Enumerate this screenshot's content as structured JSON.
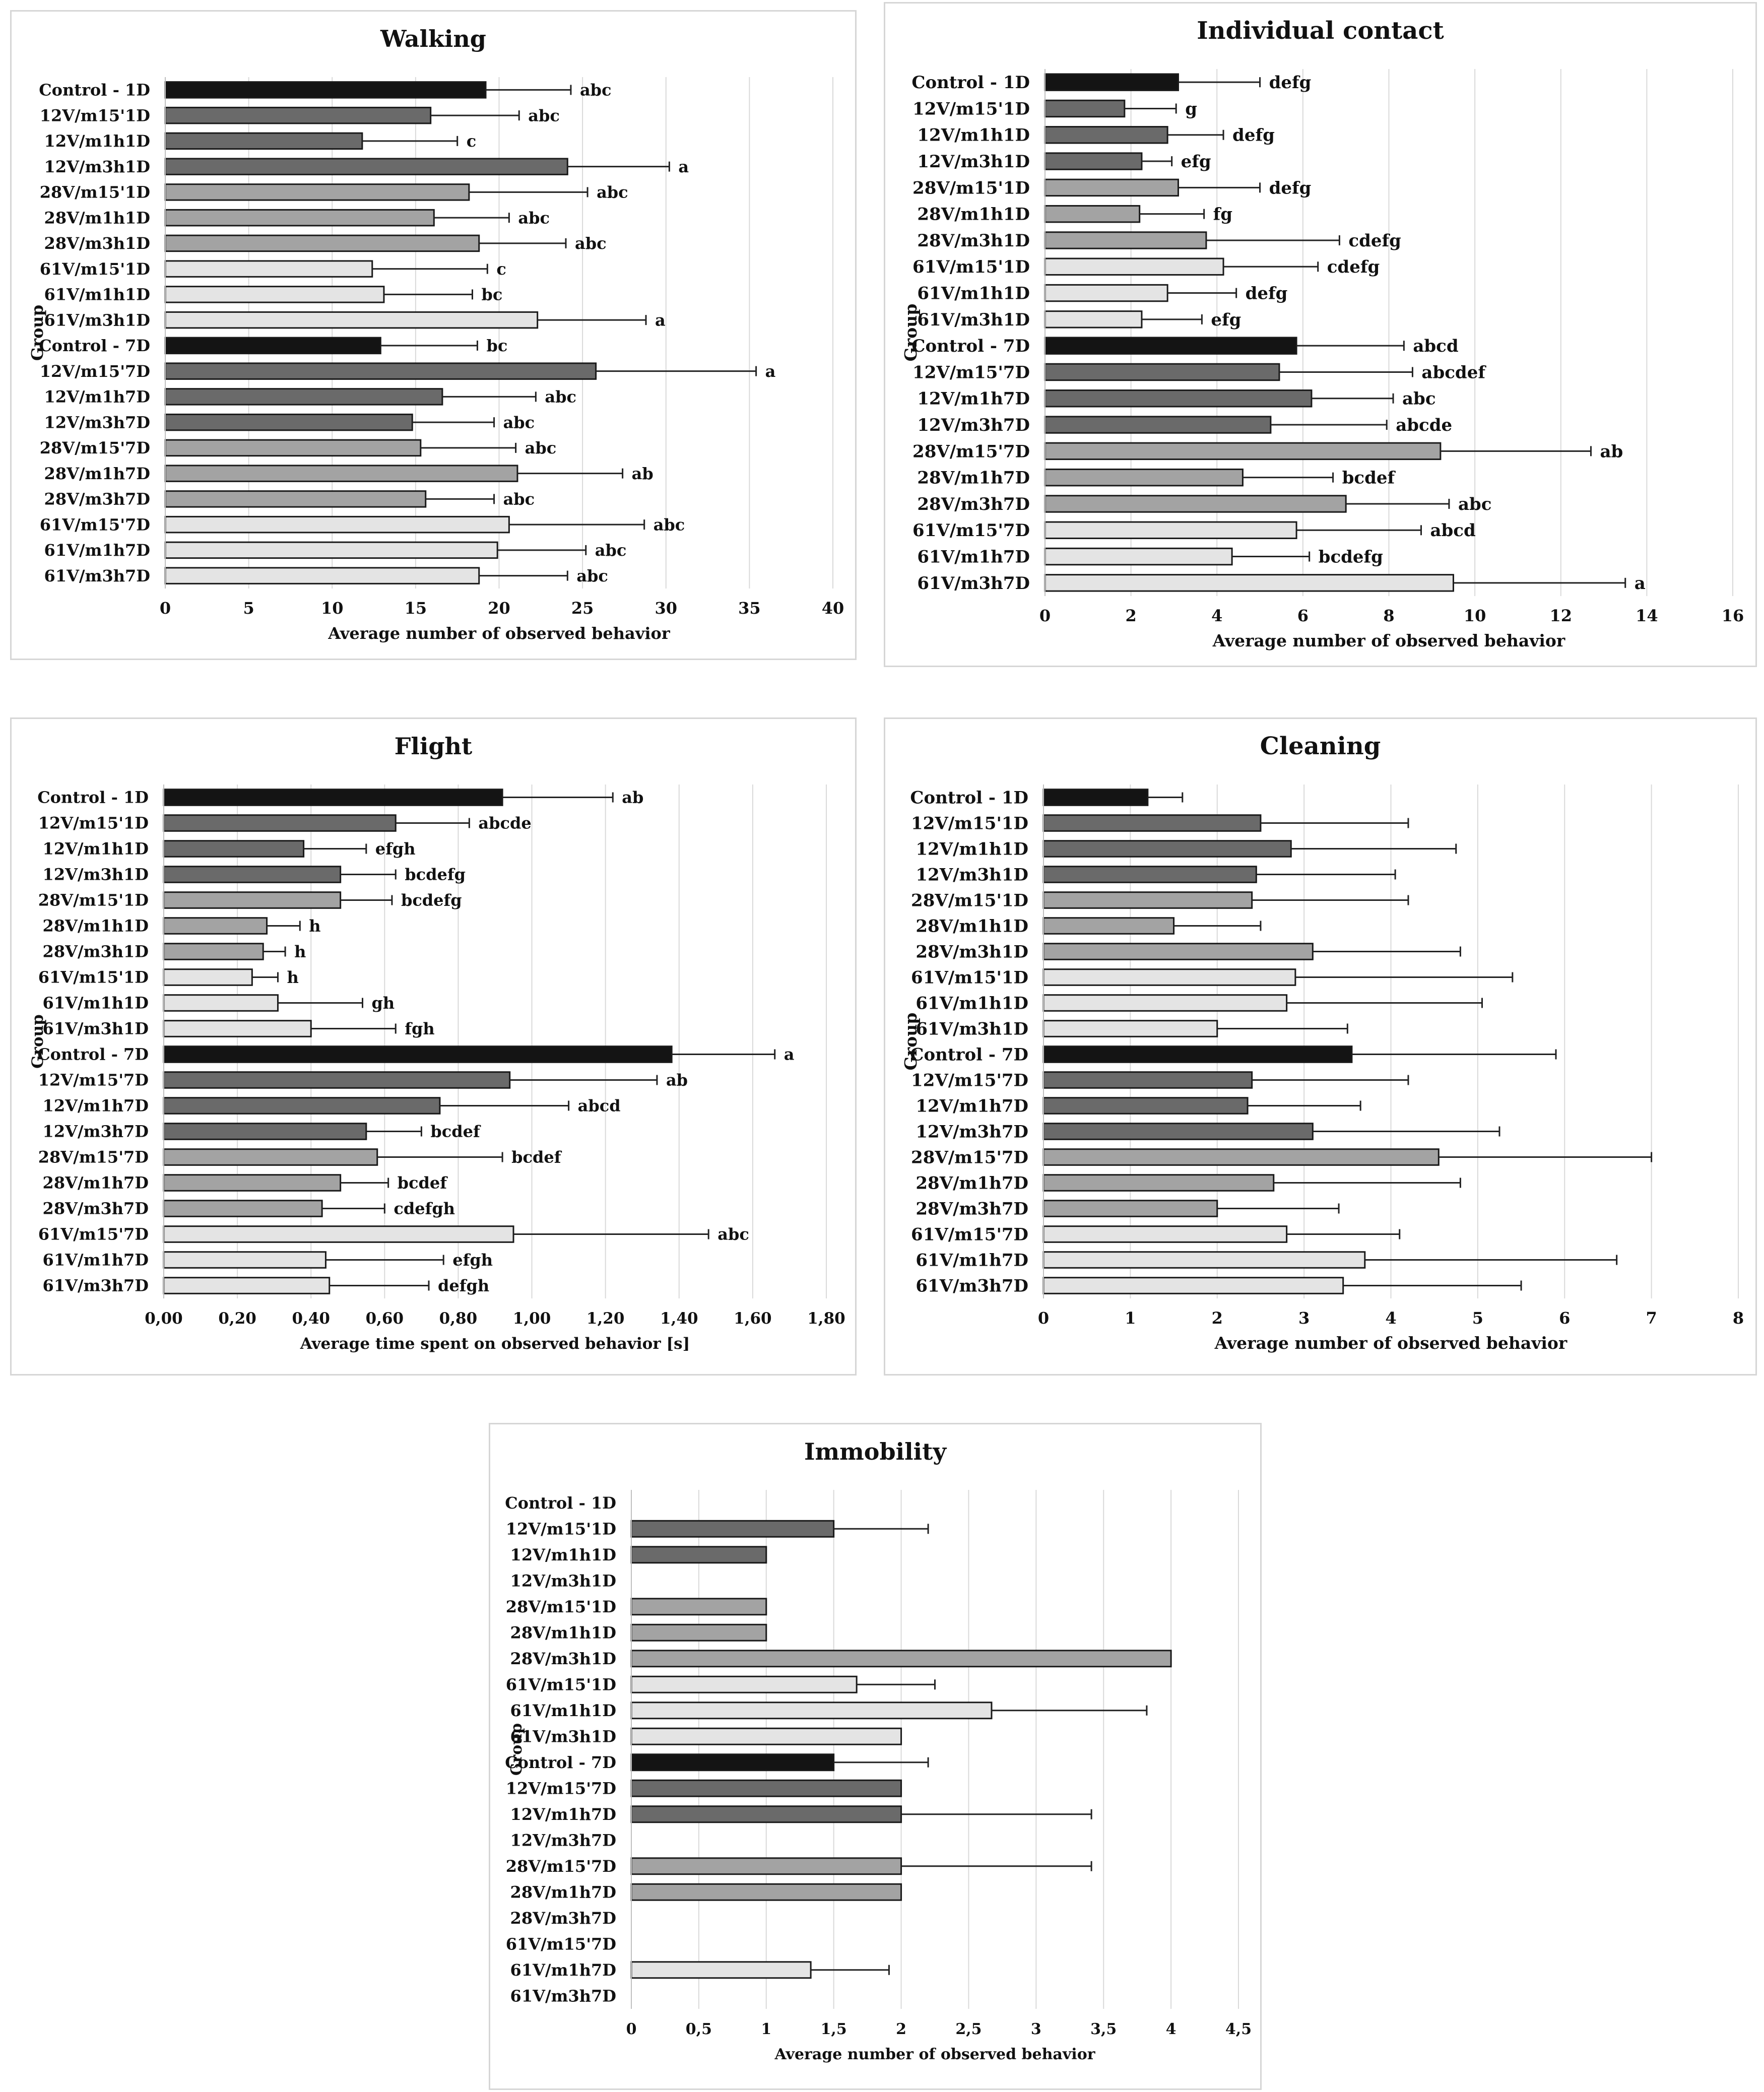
{
  "groups": [
    "Control - 1D",
    "12V/m15'1D",
    "12V/m1h1D",
    "12V/m3h1D",
    "28V/m15'1D",
    "28V/m1h1D",
    "28V/m3h1D",
    "61V/m15'1D",
    "61V/m1h1D",
    "61V/m3h1D",
    "Control - 7D",
    "12V/m15'7D",
    "12V/m1h7D",
    "12V/m3h7D",
    "28V/m15'7D",
    "28V/m1h7D",
    "28V/m3h7D",
    "61V/m15'7D",
    "61V/m1h7D",
    "61V/m3h7D"
  ],
  "series_colors": {
    "control": "#141414",
    "v12": "#6a6a6a",
    "v28": "#a3a3a3",
    "v61": "#e4e4e4"
  },
  "chart_data": [
    {
      "type": "bar",
      "orientation": "horizontal",
      "title": "Walking",
      "xlabel": "Average number of observed behavior",
      "ylabel": "Group",
      "xlim": [
        0,
        40
      ],
      "ticks": [
        0,
        5,
        10,
        15,
        20,
        25,
        30,
        35,
        40
      ],
      "tick_labels": [
        "0",
        "5",
        "10",
        "15",
        "20",
        "25",
        "30",
        "35",
        "40"
      ],
      "values": [
        19.2,
        15.9,
        11.8,
        24.1,
        18.2,
        16.1,
        18.8,
        12.4,
        13.1,
        22.3,
        12.9,
        25.8,
        16.6,
        14.8,
        15.3,
        21.1,
        15.6,
        20.6,
        19.9,
        18.8
      ],
      "errors": [
        5.1,
        5.3,
        5.7,
        6.1,
        7.1,
        4.5,
        5.2,
        6.9,
        5.3,
        6.5,
        5.8,
        9.6,
        5.6,
        4.9,
        5.7,
        6.3,
        4.1,
        8.1,
        5.3,
        5.3
      ],
      "letters": [
        "abc",
        "abc",
        "c",
        "a",
        "abc",
        "abc",
        "abc",
        "c",
        "bc",
        "a",
        "bc",
        "a",
        "abc",
        "abc",
        "abc",
        "ab",
        "abc",
        "abc",
        "abc",
        "abc"
      ]
    },
    {
      "type": "bar",
      "orientation": "horizontal",
      "title": "Individual contact",
      "xlabel": "Average number of observed behavior",
      "ylabel": "Group",
      "xlim": [
        0,
        16
      ],
      "ticks": [
        0,
        2,
        4,
        6,
        8,
        10,
        12,
        14,
        16
      ],
      "tick_labels": [
        "0",
        "2",
        "4",
        "6",
        "8",
        "10",
        "12",
        "14",
        "16"
      ],
      "values": [
        3.1,
        1.85,
        2.85,
        2.25,
        3.1,
        2.2,
        3.75,
        4.15,
        2.85,
        2.25,
        5.85,
        5.45,
        6.2,
        5.25,
        9.2,
        4.6,
        7.0,
        5.85,
        4.35,
        9.5
      ],
      "errors": [
        1.9,
        1.2,
        1.3,
        0.7,
        1.9,
        1.5,
        3.1,
        2.2,
        1.6,
        1.4,
        2.5,
        3.1,
        1.9,
        2.7,
        3.5,
        2.1,
        2.4,
        2.9,
        1.8,
        4.0
      ],
      "letters": [
        "defg",
        "g",
        "defg",
        "efg",
        "defg",
        "fg",
        "cdefg",
        "cdefg",
        "defg",
        "efg",
        "abcd",
        "abcdef",
        "abc",
        "abcde",
        "ab",
        "bcdef",
        "abc",
        "abcd",
        "bcdefg",
        "a"
      ]
    },
    {
      "type": "bar",
      "orientation": "horizontal",
      "title": "Flight",
      "xlabel": "Average time spent on observed behavior [s]",
      "ylabel": "Group",
      "xlim": [
        0,
        1.8
      ],
      "ticks": [
        0,
        0.2,
        0.4,
        0.6,
        0.8,
        1.0,
        1.2,
        1.4,
        1.6,
        1.8
      ],
      "tick_labels": [
        "0,00",
        "0,20",
        "0,40",
        "0,60",
        "0,80",
        "1,00",
        "1,20",
        "1,40",
        "1,60",
        "1,80"
      ],
      "values": [
        0.92,
        0.63,
        0.38,
        0.48,
        0.48,
        0.28,
        0.27,
        0.24,
        0.31,
        0.4,
        1.38,
        0.94,
        0.75,
        0.55,
        0.58,
        0.48,
        0.43,
        0.95,
        0.44,
        0.45
      ],
      "errors": [
        0.3,
        0.2,
        0.17,
        0.15,
        0.14,
        0.09,
        0.06,
        0.07,
        0.23,
        0.23,
        0.28,
        0.4,
        0.35,
        0.15,
        0.34,
        0.13,
        0.17,
        0.53,
        0.32,
        0.27
      ],
      "letters": [
        "ab",
        "abcde",
        "efgh",
        "bcdefg",
        "bcdefg",
        "h",
        "h",
        "h",
        "gh",
        "fgh",
        "a",
        "ab",
        "abcd",
        "bcdef",
        "bcdef",
        "bcdef",
        "cdefgh",
        "abc",
        "efgh",
        "defgh"
      ]
    },
    {
      "type": "bar",
      "orientation": "horizontal",
      "title": "Cleaning",
      "xlabel": "Average number of observed behavior",
      "ylabel": "Group",
      "xlim": [
        0,
        8
      ],
      "ticks": [
        0,
        1,
        2,
        3,
        4,
        5,
        6,
        7,
        8
      ],
      "tick_labels": [
        "0",
        "1",
        "2",
        "3",
        "4",
        "5",
        "6",
        "7",
        "8"
      ],
      "values": [
        1.2,
        2.5,
        2.85,
        2.45,
        2.4,
        1.5,
        3.1,
        2.9,
        2.8,
        2.0,
        3.55,
        2.4,
        2.35,
        3.1,
        4.55,
        2.65,
        2.0,
        2.8,
        3.7,
        3.45
      ],
      "errors": [
        0.4,
        1.7,
        1.9,
        1.6,
        1.8,
        1.0,
        1.7,
        2.5,
        2.25,
        1.5,
        2.35,
        1.8,
        1.3,
        2.15,
        2.45,
        2.15,
        1.4,
        1.3,
        2.9,
        2.05
      ],
      "letters": [
        "",
        "",
        "",
        "",
        "",
        "",
        "",
        "",
        "",
        "",
        "",
        "",
        "",
        "",
        "",
        "",
        "",
        "",
        "",
        ""
      ]
    },
    {
      "type": "bar",
      "orientation": "horizontal",
      "title": "Immobility",
      "xlabel": "Average number of observed behavior",
      "ylabel": "Group",
      "xlim": [
        0,
        4.5
      ],
      "ticks": [
        0,
        0.5,
        1,
        1.5,
        2,
        2.5,
        3,
        3.5,
        4,
        4.5
      ],
      "tick_labels": [
        "0",
        "0,5",
        "1",
        "1,5",
        "2",
        "2,5",
        "3",
        "3,5",
        "4",
        "4,5"
      ],
      "values": [
        0,
        1.5,
        1.0,
        0,
        1.0,
        1.0,
        4.0,
        1.67,
        2.67,
        2.0,
        1.5,
        2.0,
        2.0,
        0,
        2.0,
        2.0,
        0,
        0,
        1.33,
        0
      ],
      "errors": [
        0,
        0.7,
        0,
        0,
        0,
        0,
        0,
        0.58,
        1.15,
        0,
        0.7,
        0,
        1.41,
        0,
        1.41,
        0,
        0,
        0,
        0.58,
        0
      ],
      "letters": [
        "",
        "",
        "",
        "",
        "",
        "",
        "",
        "",
        "",
        "",
        "",
        "",
        "",
        "",
        "",
        "",
        "",
        "",
        "",
        ""
      ]
    }
  ]
}
